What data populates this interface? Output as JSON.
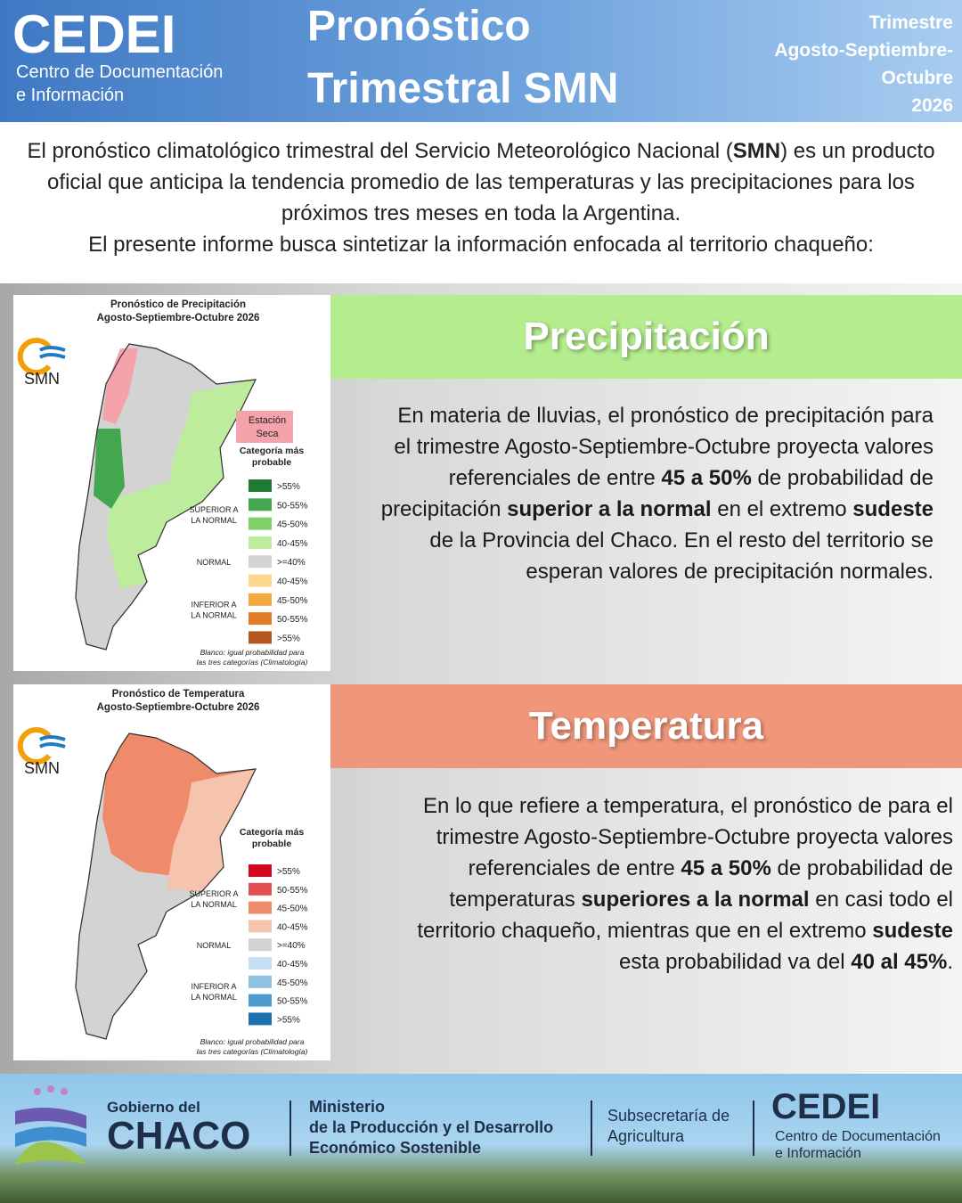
{
  "header": {
    "logo": {
      "name": "CEDEI",
      "subtitle": [
        "Centro de Documentación",
        "e Información"
      ]
    },
    "title": [
      "Pronóstico",
      "Trimestral SMN"
    ],
    "period": [
      "Trimestre",
      "Agosto-Septiembre-",
      "Octubre",
      "2026"
    ]
  },
  "intro": {
    "paragraphs": [
      [
        {
          "text": "El pronóstico climatológico trimestral del Servicio Meteorológico Nacional ("
        },
        {
          "text": "SMN",
          "bold": true
        },
        {
          "text": ") es un producto oficial que anticipa la tendencia promedio de las temperaturas y las precipitaciones para los próximos tres meses en toda la Argentina."
        }
      ],
      [
        {
          "text": "El presente informe busca sintetizar la información enfocada al territorio chaqueño:"
        }
      ]
    ]
  },
  "sections": [
    {
      "heading": "Precipitación",
      "color": "#b4ec8e",
      "body": [
        {
          "text": "En materia de lluvias, el pronóstico de precipitación para el trimestre Agosto-Septiembre-Octubre proyecta valores referenciales de entre "
        },
        {
          "text": "45 a 50%",
          "bold": true
        },
        {
          "text": " de probabilidad de precipitación "
        },
        {
          "text": "superior a la normal",
          "bold": true
        },
        {
          "text": " en el extremo "
        },
        {
          "text": "sudeste",
          "bold": true
        },
        {
          "text": " de la Provincia del Chaco. En el resto del territorio se esperan valores de precipitación normales."
        }
      ],
      "map": {
        "title": [
          "Pronóstico de Precipitación",
          "Agosto-Septiembre-Octubre 2026"
        ],
        "logo": "SMN",
        "note_box": {
          "lines": [
            "Estación",
            "Seca"
          ],
          "color": "#f4a3aa"
        },
        "legend_title": [
          "Categoría más",
          "probable"
        ],
        "groups": [
          {
            "lines": [
              "SUPERIOR A",
              "LA NORMAL"
            ]
          },
          {
            "lines": [
              "NORMAL"
            ]
          },
          {
            "lines": [
              "INFERIOR A",
              "LA NORMAL"
            ]
          }
        ],
        "legend": [
          {
            "label": ">55%",
            "color": "#1f7a33"
          },
          {
            "label": "50-55%",
            "color": "#43a74f"
          },
          {
            "label": "45-50%",
            "color": "#7fd066"
          },
          {
            "label": "40-45%",
            "color": "#bcec9c"
          },
          {
            "label": ">=40%",
            "color": "#d3d3d3"
          },
          {
            "label": "40-45%",
            "color": "#fdd58c"
          },
          {
            "label": "45-50%",
            "color": "#f4a83f"
          },
          {
            "label": "50-55%",
            "color": "#e07c26"
          },
          {
            "label": ">55%",
            "color": "#b3571d"
          }
        ],
        "footnote": [
          "Blanco: igual probabilidad para",
          "las tres categorías (Climatología)"
        ]
      }
    },
    {
      "heading": "Temperatura",
      "color": "#f0977b",
      "body": [
        {
          "text": "En lo que refiere a temperatura, el pronóstico de para el trimestre Agosto-Septiembre-Octubre proyecta valores referenciales de entre "
        },
        {
          "text": "45 a 50%",
          "bold": true
        },
        {
          "text": " de probabilidad de temperaturas "
        },
        {
          "text": "superiores a la normal",
          "bold": true
        },
        {
          "text": " en casi todo el territorio chaqueño, mientras que en el extremo "
        },
        {
          "text": "sudeste",
          "bold": true
        },
        {
          "text": " esta probabilidad va del "
        },
        {
          "text": "40 al 45%",
          "bold": true
        },
        {
          "text": "."
        }
      ],
      "map": {
        "title": [
          "Pronóstico de Temperatura",
          "Agosto-Septiembre-Octubre 2026"
        ],
        "logo": "SMN",
        "legend_title": [
          "Categoría más",
          "probable"
        ],
        "groups": [
          {
            "lines": [
              "SUPERIOR A",
              "LA NORMAL"
            ]
          },
          {
            "lines": [
              "NORMAL"
            ]
          },
          {
            "lines": [
              "INFERIOR A",
              "LA NORMAL"
            ]
          }
        ],
        "legend": [
          {
            "label": ">55%",
            "color": "#d5071f"
          },
          {
            "label": "50-55%",
            "color": "#e45050"
          },
          {
            "label": "45-50%",
            "color": "#ef8a6a"
          },
          {
            "label": "40-45%",
            "color": "#f6c4ad"
          },
          {
            "label": ">=40%",
            "color": "#d3d3d3"
          },
          {
            "label": "40-45%",
            "color": "#c6e0f1"
          },
          {
            "label": "45-50%",
            "color": "#8fc2e2"
          },
          {
            "label": "50-55%",
            "color": "#4f9bd0"
          },
          {
            "label": ">55%",
            "color": "#1a6fb0"
          }
        ],
        "footnote": [
          "Blanco: igual probabilidad para",
          "las tres categorías (Climatología)"
        ]
      }
    }
  ],
  "footer": {
    "gov": [
      "Gobierno del",
      "CHACO"
    ],
    "ministry": [
      "Ministerio",
      "de la Producción y el Desarrollo",
      "Económico Sostenible"
    ],
    "sub": [
      "Subsecretaría de",
      "Agricultura"
    ],
    "cedei": {
      "name": "CEDEI",
      "subtitle": [
        "Centro de Documentación",
        "e Información"
      ]
    }
  }
}
